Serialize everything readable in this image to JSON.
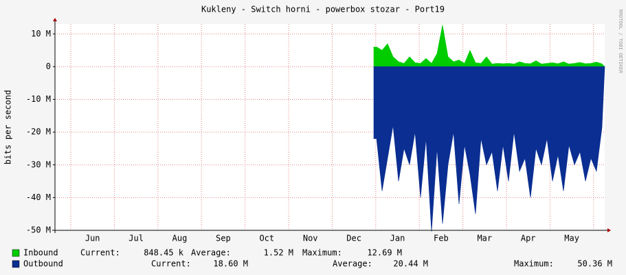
{
  "chart_data": {
    "type": "area",
    "title": "Kukleny - Switch horni - powerbox stozar - Port19",
    "y_label": "bits per second",
    "watermark": "RRDTOOL / TOBI OETIKER",
    "month_labels": [
      "Jun",
      "Jul",
      "Aug",
      "Sep",
      "Oct",
      "Nov",
      "Dec",
      "Jan",
      "Feb",
      "Mar",
      "Apr",
      "May"
    ],
    "ylim": [
      -50000000,
      13000000
    ],
    "yticks": [
      {
        "value": -50000000,
        "label": "-50 M"
      },
      {
        "value": -40000000,
        "label": "-40 M"
      },
      {
        "value": -30000000,
        "label": "-30 M"
      },
      {
        "value": -20000000,
        "label": "-20 M"
      },
      {
        "value": -10000000,
        "label": "-10 M"
      },
      0,
      {
        "value": 10000000,
        "label": "10 M"
      }
    ],
    "grid": true,
    "series": [
      {
        "name": "Inbound",
        "color": "#00cc00",
        "stats": [
          {
            "label": "Current:",
            "value": "848.45 k"
          },
          {
            "label": "Average:",
            "value": "1.52 M"
          },
          {
            "label": "Maximum:",
            "value": "12.69 M"
          }
        ],
        "values": [
          null,
          null,
          null,
          null,
          null,
          null,
          null,
          null,
          null,
          null,
          null,
          null,
          null,
          null,
          null,
          null,
          null,
          null,
          null,
          null,
          null,
          null,
          null,
          null,
          null,
          null,
          null,
          null,
          null,
          null,
          null,
          null,
          null,
          null,
          null,
          null,
          null,
          null,
          null,
          null,
          null,
          null,
          null,
          null,
          null,
          null,
          null,
          null,
          null,
          null,
          null,
          null,
          null,
          null,
          null,
          null,
          null,
          null,
          6000000,
          5000000,
          7000000,
          3000000,
          1500000,
          1000000,
          3000000,
          1200000,
          1000000,
          2500000,
          1000000,
          4000000,
          12690000,
          3000000,
          1500000,
          2000000,
          1000000,
          5000000,
          1200000,
          1000000,
          3000000,
          800000,
          1000000,
          900000,
          1000000,
          800000,
          1500000,
          1000000,
          900000,
          1800000,
          800000,
          1000000,
          1200000,
          900000,
          1500000,
          800000,
          1000000,
          1300000,
          900000,
          1000000,
          1400000,
          848450
        ]
      },
      {
        "name": "Outbound",
        "color": "#0a2e91",
        "stats": [
          {
            "label": "Current:",
            "value": "18.60 M"
          },
          {
            "label": "Average:",
            "value": "20.44 M"
          },
          {
            "label": "Maximum:",
            "value": "50.36 M"
          }
        ],
        "values": [
          null,
          null,
          null,
          null,
          null,
          null,
          null,
          null,
          null,
          null,
          null,
          null,
          null,
          null,
          null,
          null,
          null,
          null,
          null,
          null,
          null,
          null,
          null,
          null,
          null,
          null,
          null,
          null,
          null,
          null,
          null,
          null,
          null,
          null,
          null,
          null,
          null,
          null,
          null,
          null,
          null,
          null,
          null,
          null,
          null,
          null,
          null,
          null,
          null,
          null,
          null,
          null,
          null,
          null,
          null,
          null,
          null,
          null,
          -22000000,
          -38000000,
          -28000000,
          -18000000,
          -35000000,
          -25000000,
          -30000000,
          -20000000,
          -40000000,
          -22000000,
          -50360000,
          -25000000,
          -48000000,
          -30000000,
          -20000000,
          -42000000,
          -24000000,
          -33000000,
          -45000000,
          -22000000,
          -30000000,
          -26000000,
          -38000000,
          -24000000,
          -35000000,
          -20000000,
          -32000000,
          -28000000,
          -40000000,
          -25000000,
          -30000000,
          -22000000,
          -35000000,
          -27000000,
          -38000000,
          -24000000,
          -30000000,
          -26000000,
          -35000000,
          -28000000,
          -32000000,
          -18600000
        ]
      }
    ]
  }
}
